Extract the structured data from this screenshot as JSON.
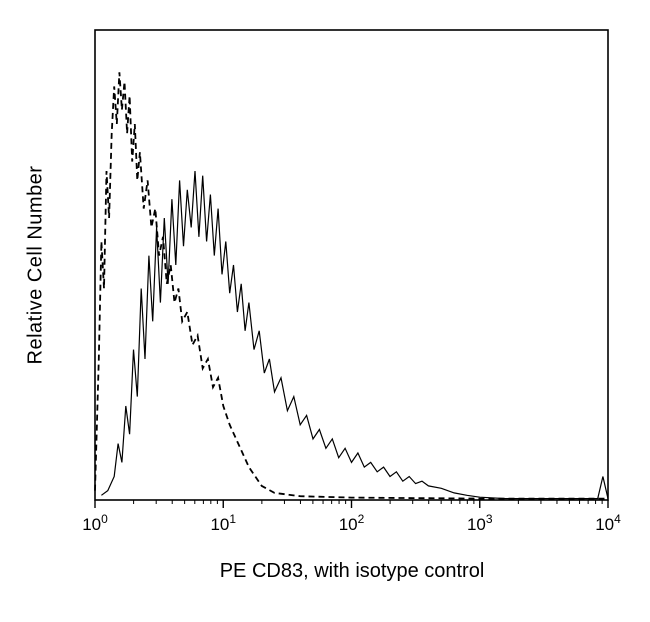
{
  "figure": {
    "background": "#ffffff",
    "line_color": "#000000"
  },
  "chart_data": {
    "type": "line",
    "subtype": "flow-cytometry-histogram",
    "title": "",
    "xlabel": "PE CD83, with isotype control",
    "ylabel": "Relative Cell Number",
    "x_scale": "log10",
    "xlim_log10": [
      0,
      4
    ],
    "x_ticks_exponents": [
      0,
      1,
      2,
      3,
      4
    ],
    "x_tick_base": "10",
    "ylim": [
      0,
      1
    ],
    "y_ticks": [],
    "grid": false,
    "legend_position": "none",
    "frame": true,
    "series": [
      {
        "name": "isotype control",
        "style": "dashed",
        "color": "#000000",
        "points": [
          [
            0.0,
            0.02
          ],
          [
            0.03,
            0.3
          ],
          [
            0.05,
            0.55
          ],
          [
            0.07,
            0.45
          ],
          [
            0.09,
            0.7
          ],
          [
            0.11,
            0.6
          ],
          [
            0.13,
            0.78
          ],
          [
            0.15,
            0.88
          ],
          [
            0.17,
            0.8
          ],
          [
            0.19,
            0.91
          ],
          [
            0.21,
            0.83
          ],
          [
            0.23,
            0.89
          ],
          [
            0.25,
            0.78
          ],
          [
            0.27,
            0.86
          ],
          [
            0.29,
            0.72
          ],
          [
            0.31,
            0.8
          ],
          [
            0.33,
            0.68
          ],
          [
            0.35,
            0.74
          ],
          [
            0.38,
            0.62
          ],
          [
            0.41,
            0.68
          ],
          [
            0.44,
            0.58
          ],
          [
            0.47,
            0.62
          ],
          [
            0.5,
            0.52
          ],
          [
            0.53,
            0.56
          ],
          [
            0.56,
            0.46
          ],
          [
            0.59,
            0.5
          ],
          [
            0.62,
            0.42
          ],
          [
            0.65,
            0.45
          ],
          [
            0.68,
            0.38
          ],
          [
            0.72,
            0.4
          ],
          [
            0.76,
            0.33
          ],
          [
            0.8,
            0.35
          ],
          [
            0.84,
            0.28
          ],
          [
            0.88,
            0.3
          ],
          [
            0.92,
            0.24
          ],
          [
            0.96,
            0.26
          ],
          [
            1.0,
            0.2
          ],
          [
            1.05,
            0.16
          ],
          [
            1.1,
            0.13
          ],
          [
            1.15,
            0.1
          ],
          [
            1.2,
            0.07
          ],
          [
            1.25,
            0.05
          ],
          [
            1.3,
            0.03
          ],
          [
            1.4,
            0.015
          ],
          [
            1.6,
            0.008
          ],
          [
            2.0,
            0.005
          ],
          [
            2.5,
            0.004
          ],
          [
            3.0,
            0.003
          ],
          [
            3.5,
            0.003
          ],
          [
            4.0,
            0.003
          ]
        ]
      },
      {
        "name": "PE CD83",
        "style": "solid",
        "color": "#000000",
        "points": [
          [
            0.05,
            0.01
          ],
          [
            0.1,
            0.02
          ],
          [
            0.15,
            0.05
          ],
          [
            0.18,
            0.12
          ],
          [
            0.21,
            0.08
          ],
          [
            0.24,
            0.2
          ],
          [
            0.27,
            0.14
          ],
          [
            0.3,
            0.32
          ],
          [
            0.33,
            0.22
          ],
          [
            0.36,
            0.45
          ],
          [
            0.39,
            0.3
          ],
          [
            0.42,
            0.52
          ],
          [
            0.45,
            0.38
          ],
          [
            0.48,
            0.58
          ],
          [
            0.51,
            0.42
          ],
          [
            0.54,
            0.6
          ],
          [
            0.57,
            0.46
          ],
          [
            0.6,
            0.64
          ],
          [
            0.63,
            0.5
          ],
          [
            0.66,
            0.68
          ],
          [
            0.69,
            0.54
          ],
          [
            0.72,
            0.66
          ],
          [
            0.75,
            0.58
          ],
          [
            0.78,
            0.7
          ],
          [
            0.81,
            0.56
          ],
          [
            0.84,
            0.69
          ],
          [
            0.87,
            0.55
          ],
          [
            0.9,
            0.65
          ],
          [
            0.93,
            0.52
          ],
          [
            0.96,
            0.62
          ],
          [
            0.99,
            0.48
          ],
          [
            1.02,
            0.55
          ],
          [
            1.05,
            0.44
          ],
          [
            1.08,
            0.5
          ],
          [
            1.11,
            0.4
          ],
          [
            1.14,
            0.46
          ],
          [
            1.17,
            0.36
          ],
          [
            1.2,
            0.42
          ],
          [
            1.24,
            0.32
          ],
          [
            1.28,
            0.36
          ],
          [
            1.32,
            0.27
          ],
          [
            1.36,
            0.3
          ],
          [
            1.4,
            0.23
          ],
          [
            1.45,
            0.26
          ],
          [
            1.5,
            0.19
          ],
          [
            1.55,
            0.22
          ],
          [
            1.6,
            0.16
          ],
          [
            1.65,
            0.18
          ],
          [
            1.7,
            0.13
          ],
          [
            1.75,
            0.15
          ],
          [
            1.8,
            0.11
          ],
          [
            1.85,
            0.13
          ],
          [
            1.9,
            0.09
          ],
          [
            1.95,
            0.11
          ],
          [
            2.0,
            0.08
          ],
          [
            2.05,
            0.1
          ],
          [
            2.1,
            0.07
          ],
          [
            2.15,
            0.08
          ],
          [
            2.2,
            0.06
          ],
          [
            2.25,
            0.07
          ],
          [
            2.3,
            0.05
          ],
          [
            2.35,
            0.06
          ],
          [
            2.4,
            0.04
          ],
          [
            2.45,
            0.05
          ],
          [
            2.5,
            0.035
          ],
          [
            2.55,
            0.04
          ],
          [
            2.6,
            0.03
          ],
          [
            2.7,
            0.025
          ],
          [
            2.8,
            0.015
          ],
          [
            2.9,
            0.01
          ],
          [
            3.0,
            0.006
          ],
          [
            3.2,
            0.003
          ],
          [
            3.5,
            0.003
          ],
          [
            3.8,
            0.003
          ],
          [
            3.92,
            0.003
          ],
          [
            3.96,
            0.05
          ],
          [
            4.0,
            0.003
          ]
        ]
      }
    ]
  }
}
